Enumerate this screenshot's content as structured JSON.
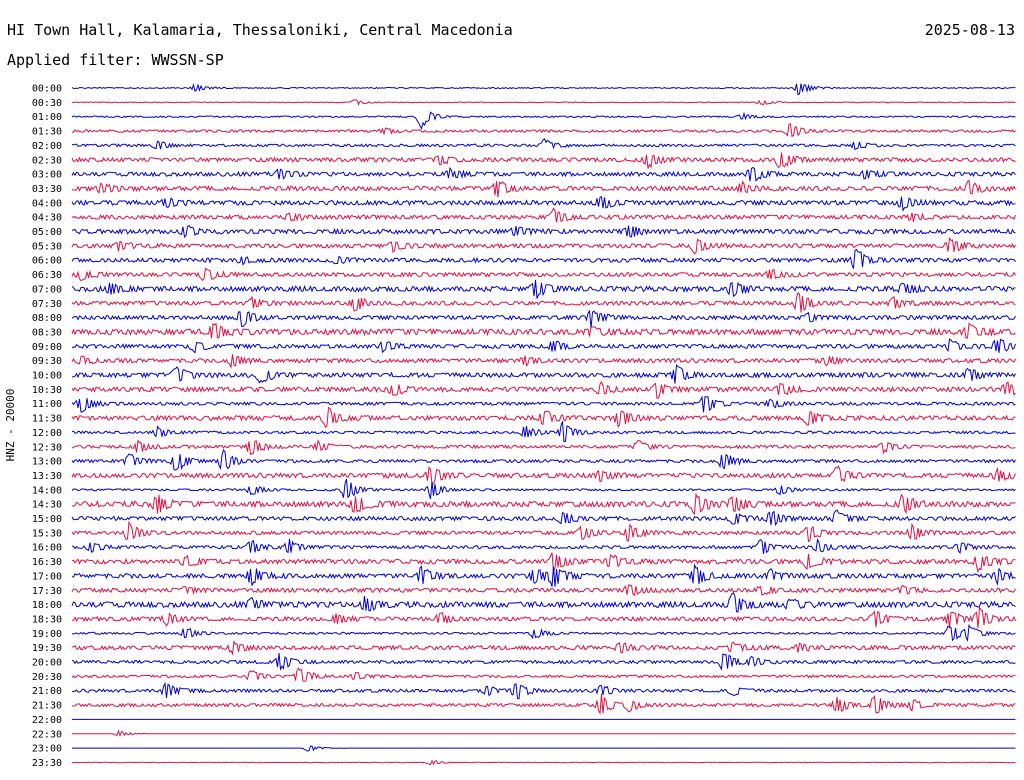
{
  "header": {
    "title": "HI Town Hall, Kalamaria, Thessaloniki, Central Macedonia",
    "date": "2025-08-13",
    "filter_label": "Applied filter: WWSSN-SP"
  },
  "colors": {
    "even_trace": "#0000cc",
    "odd_trace": "#dd1144",
    "text": "#000000"
  },
  "chart_data": {
    "type": "line",
    "ylabel": "HNZ - 20000",
    "rows": [
      {
        "label": "00:00",
        "events": [
          [
            0.13,
            4
          ],
          [
            0.77,
            8
          ]
        ],
        "noise": 0.4
      },
      {
        "label": "00:30",
        "events": [
          [
            0.3,
            3
          ],
          [
            0.73,
            3
          ]
        ],
        "noise": 0.3
      },
      {
        "label": "01:00",
        "events": [
          [
            0.37,
            12
          ],
          [
            0.71,
            3
          ]
        ],
        "noise": 0.6
      },
      {
        "label": "01:30",
        "events": [
          [
            0.33,
            3
          ],
          [
            0.76,
            9
          ]
        ],
        "noise": 1.0
      },
      {
        "label": "02:00",
        "events": [
          [
            0.09,
            5
          ],
          [
            0.5,
            6
          ],
          [
            0.83,
            4
          ]
        ],
        "noise": 1.0
      },
      {
        "label": "02:30",
        "events": [
          [
            0.39,
            5
          ],
          [
            0.61,
            8
          ],
          [
            0.75,
            10
          ]
        ],
        "noise": 1.6
      },
      {
        "label": "03:00",
        "events": [
          [
            0.22,
            6
          ],
          [
            0.4,
            5
          ],
          [
            0.72,
            9
          ],
          [
            0.84,
            5
          ]
        ],
        "noise": 1.6
      },
      {
        "label": "03:30",
        "events": [
          [
            0.03,
            5
          ],
          [
            0.45,
            10
          ],
          [
            0.71,
            6
          ],
          [
            0.95,
            7
          ]
        ],
        "noise": 1.8
      },
      {
        "label": "04:00",
        "events": [
          [
            0.1,
            5
          ],
          [
            0.56,
            7
          ],
          [
            0.88,
            7
          ]
        ],
        "noise": 1.8
      },
      {
        "label": "04:30",
        "events": [
          [
            0.23,
            4
          ],
          [
            0.51,
            8
          ],
          [
            0.89,
            4
          ]
        ],
        "noise": 1.6
      },
      {
        "label": "05:00",
        "events": [
          [
            0.12,
            6
          ],
          [
            0.47,
            5
          ],
          [
            0.59,
            6
          ]
        ],
        "noise": 1.8
      },
      {
        "label": "05:30",
        "events": [
          [
            0.05,
            5
          ],
          [
            0.34,
            6
          ],
          [
            0.66,
            9
          ],
          [
            0.93,
            8
          ]
        ],
        "noise": 1.6
      },
      {
        "label": "06:00",
        "events": [
          [
            0.18,
            4
          ],
          [
            0.28,
            4
          ],
          [
            0.83,
            12
          ]
        ],
        "noise": 1.6
      },
      {
        "label": "06:30",
        "events": [
          [
            0.01,
            6
          ],
          [
            0.14,
            7
          ],
          [
            0.74,
            5
          ]
        ],
        "noise": 1.6
      },
      {
        "label": "07:00",
        "events": [
          [
            0.04,
            6
          ],
          [
            0.49,
            10
          ],
          [
            0.7,
            8
          ],
          [
            0.88,
            6
          ]
        ],
        "noise": 2.0
      },
      {
        "label": "07:30",
        "events": [
          [
            0.19,
            5
          ],
          [
            0.3,
            8
          ],
          [
            0.77,
            11
          ],
          [
            0.87,
            6
          ]
        ],
        "noise": 1.6
      },
      {
        "label": "08:00",
        "events": [
          [
            0.18,
            10
          ],
          [
            0.55,
            10
          ],
          [
            0.78,
            4
          ]
        ],
        "noise": 1.6
      },
      {
        "label": "08:30",
        "events": [
          [
            0.15,
            9
          ],
          [
            0.55,
            5
          ],
          [
            0.95,
            7
          ]
        ],
        "noise": 2.2
      },
      {
        "label": "09:00",
        "events": [
          [
            0.13,
            6
          ],
          [
            0.33,
            6
          ],
          [
            0.51,
            6
          ],
          [
            0.93,
            7
          ],
          [
            0.98,
            8
          ]
        ],
        "noise": 1.6
      },
      {
        "label": "09:30",
        "events": [
          [
            0.01,
            4
          ],
          [
            0.17,
            7
          ],
          [
            0.48,
            4
          ],
          [
            0.8,
            4
          ]
        ],
        "noise": 1.6
      },
      {
        "label": "10:00",
        "events": [
          [
            0.11,
            10
          ],
          [
            0.2,
            9
          ],
          [
            0.64,
            10
          ],
          [
            0.95,
            6
          ]
        ],
        "noise": 1.8
      },
      {
        "label": "10:30",
        "events": [
          [
            0.34,
            7
          ],
          [
            0.56,
            6
          ],
          [
            0.62,
            8
          ],
          [
            0.75,
            7
          ],
          [
            0.99,
            8
          ]
        ],
        "noise": 1.8
      },
      {
        "label": "11:00",
        "events": [
          [
            0.01,
            9
          ],
          [
            0.67,
            10
          ],
          [
            0.74,
            5
          ]
        ],
        "noise": 1.2
      },
      {
        "label": "11:30",
        "events": [
          [
            0.27,
            11
          ],
          [
            0.5,
            8
          ],
          [
            0.58,
            10
          ],
          [
            0.78,
            9
          ]
        ],
        "noise": 1.8
      },
      {
        "label": "12:00",
        "events": [
          [
            0.09,
            6
          ],
          [
            0.48,
            7
          ],
          [
            0.52,
            11
          ]
        ],
        "noise": 1.0
      },
      {
        "label": "12:30",
        "events": [
          [
            0.07,
            7
          ],
          [
            0.19,
            11
          ],
          [
            0.26,
            6
          ],
          [
            0.6,
            6
          ],
          [
            0.86,
            6
          ]
        ],
        "noise": 1.2
      },
      {
        "label": "13:00",
        "events": [
          [
            0.06,
            8
          ],
          [
            0.11,
            12
          ],
          [
            0.16,
            11
          ],
          [
            0.69,
            10
          ]
        ],
        "noise": 1.2
      },
      {
        "label": "13:30",
        "events": [
          [
            0.38,
            10
          ],
          [
            0.56,
            5
          ],
          [
            0.81,
            10
          ],
          [
            0.98,
            6
          ]
        ],
        "noise": 1.8
      },
      {
        "label": "14:00",
        "events": [
          [
            0.19,
            6
          ],
          [
            0.29,
            12
          ],
          [
            0.38,
            9
          ],
          [
            0.75,
            5
          ]
        ],
        "noise": 0.8
      },
      {
        "label": "14:30",
        "events": [
          [
            0.09,
            9
          ],
          [
            0.3,
            10
          ],
          [
            0.66,
            11
          ],
          [
            0.7,
            9
          ],
          [
            0.88,
            10
          ]
        ],
        "noise": 2.2
      },
      {
        "label": "15:00",
        "events": [
          [
            0.52,
            8
          ],
          [
            0.7,
            7
          ],
          [
            0.74,
            8
          ],
          [
            0.81,
            8
          ]
        ],
        "noise": 1.6
      },
      {
        "label": "15:30",
        "events": [
          [
            0.06,
            10
          ],
          [
            0.54,
            8
          ],
          [
            0.59,
            10
          ],
          [
            0.78,
            9
          ],
          [
            0.89,
            8
          ]
        ],
        "noise": 1.4
      },
      {
        "label": "16:00",
        "events": [
          [
            0.02,
            5
          ],
          [
            0.19,
            8
          ],
          [
            0.23,
            7
          ],
          [
            0.73,
            8
          ],
          [
            0.79,
            7
          ],
          [
            0.94,
            6
          ]
        ],
        "noise": 1.2
      },
      {
        "label": "16:30",
        "events": [
          [
            0.12,
            5
          ],
          [
            0.51,
            11
          ],
          [
            0.57,
            8
          ],
          [
            0.78,
            8
          ],
          [
            0.96,
            10
          ]
        ],
        "noise": 1.8
      },
      {
        "label": "17:00",
        "events": [
          [
            0.19,
            10
          ],
          [
            0.37,
            9
          ],
          [
            0.49,
            9
          ],
          [
            0.51,
            11
          ],
          [
            0.66,
            10
          ],
          [
            0.74,
            6
          ],
          [
            0.98,
            7
          ]
        ],
        "noise": 1.8
      },
      {
        "label": "17:30",
        "events": [
          [
            0.12,
            4
          ],
          [
            0.59,
            6
          ],
          [
            0.73,
            5
          ],
          [
            0.88,
            4
          ]
        ],
        "noise": 1.6
      },
      {
        "label": "18:00",
        "events": [
          [
            0.19,
            6
          ],
          [
            0.31,
            9
          ],
          [
            0.7,
            12
          ],
          [
            0.76,
            6
          ]
        ],
        "noise": 2.2
      },
      {
        "label": "18:30",
        "events": [
          [
            0.1,
            7
          ],
          [
            0.28,
            5
          ],
          [
            0.39,
            7
          ],
          [
            0.85,
            10
          ],
          [
            0.93,
            9
          ],
          [
            0.96,
            11
          ]
        ],
        "noise": 1.6
      },
      {
        "label": "19:00",
        "events": [
          [
            0.12,
            7
          ],
          [
            0.49,
            6
          ],
          [
            0.93,
            10
          ],
          [
            0.95,
            7
          ]
        ],
        "noise": 0.8
      },
      {
        "label": "19:30",
        "events": [
          [
            0.17,
            6
          ],
          [
            0.58,
            5
          ],
          [
            0.7,
            6
          ],
          [
            0.77,
            4
          ]
        ],
        "noise": 1.6
      },
      {
        "label": "20:00",
        "events": [
          [
            0.22,
            9
          ],
          [
            0.69,
            11
          ],
          [
            0.72,
            5
          ]
        ],
        "noise": 1.2
      },
      {
        "label": "20:30",
        "events": [
          [
            0.19,
            6
          ],
          [
            0.24,
            11
          ],
          [
            0.3,
            4
          ]
        ],
        "noise": 1.0
      },
      {
        "label": "21:00",
        "events": [
          [
            0.1,
            9
          ],
          [
            0.44,
            6
          ],
          [
            0.47,
            10
          ],
          [
            0.56,
            7
          ],
          [
            0.7,
            5
          ]
        ],
        "noise": 1.2
      },
      {
        "label": "21:30",
        "events": [
          [
            0.56,
            12
          ],
          [
            0.59,
            6
          ],
          [
            0.81,
            10
          ],
          [
            0.85,
            12
          ],
          [
            0.89,
            6
          ]
        ],
        "noise": 1.2
      },
      {
        "label": "22:00",
        "events": [],
        "noise": 0.0
      },
      {
        "label": "22:30",
        "events": [
          [
            0.05,
            4
          ]
        ],
        "noise": 0.0
      },
      {
        "label": "23:00",
        "events": [
          [
            0.25,
            4
          ]
        ],
        "noise": 0.0
      },
      {
        "label": "23:30",
        "events": [
          [
            0.38,
            3
          ]
        ],
        "noise": 0.2
      }
    ]
  }
}
